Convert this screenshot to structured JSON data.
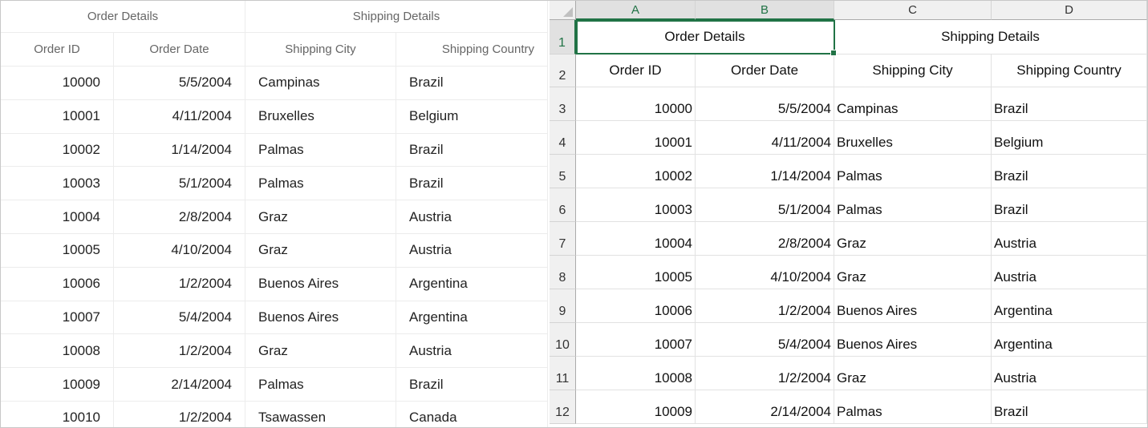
{
  "grid": {
    "stacked_headers": [
      "Order Details",
      "Shipping Details"
    ],
    "columns": [
      "Order ID",
      "Order Date",
      "Shipping City",
      "Shipping Country"
    ],
    "rows": [
      [
        "10000",
        "5/5/2004",
        "Campinas",
        "Brazil"
      ],
      [
        "10001",
        "4/11/2004",
        "Bruxelles",
        "Belgium"
      ],
      [
        "10002",
        "1/14/2004",
        "Palmas",
        "Brazil"
      ],
      [
        "10003",
        "5/1/2004",
        "Palmas",
        "Brazil"
      ],
      [
        "10004",
        "2/8/2004",
        "Graz",
        "Austria"
      ],
      [
        "10005",
        "4/10/2004",
        "Graz",
        "Austria"
      ],
      [
        "10006",
        "1/2/2004",
        "Buenos Aires",
        "Argentina"
      ],
      [
        "10007",
        "5/4/2004",
        "Buenos Aires",
        "Argentina"
      ],
      [
        "10008",
        "1/2/2004",
        "Graz",
        "Austria"
      ],
      [
        "10009",
        "2/14/2004",
        "Palmas",
        "Brazil"
      ],
      [
        "10010",
        "1/2/2004",
        "Tsawassen",
        "Canada"
      ]
    ]
  },
  "sheet": {
    "column_letters": [
      "A",
      "B",
      "C",
      "D"
    ],
    "row_numbers": [
      "1",
      "2",
      "3",
      "4",
      "5",
      "6",
      "7",
      "8",
      "9",
      "10",
      "11",
      "12"
    ],
    "merged_headers": [
      "Order Details",
      "Shipping Details"
    ],
    "columns": [
      "Order ID",
      "Order Date",
      "Shipping City",
      "Shipping Country"
    ],
    "rows": [
      [
        "10000",
        "5/5/2004",
        "Campinas",
        "Brazil"
      ],
      [
        "10001",
        "4/11/2004",
        "Bruxelles",
        "Belgium"
      ],
      [
        "10002",
        "1/14/2004",
        "Palmas",
        "Brazil"
      ],
      [
        "10003",
        "5/1/2004",
        "Palmas",
        "Brazil"
      ],
      [
        "10004",
        "2/8/2004",
        "Graz",
        "Austria"
      ],
      [
        "10005",
        "4/10/2004",
        "Graz",
        "Austria"
      ],
      [
        "10006",
        "1/2/2004",
        "Buenos Aires",
        "Argentina"
      ],
      [
        "10007",
        "5/4/2004",
        "Buenos Aires",
        "Argentina"
      ],
      [
        "10008",
        "1/2/2004",
        "Graz",
        "Austria"
      ],
      [
        "10009",
        "2/14/2004",
        "Palmas",
        "Brazil"
      ]
    ],
    "selection_color": "#217346"
  }
}
